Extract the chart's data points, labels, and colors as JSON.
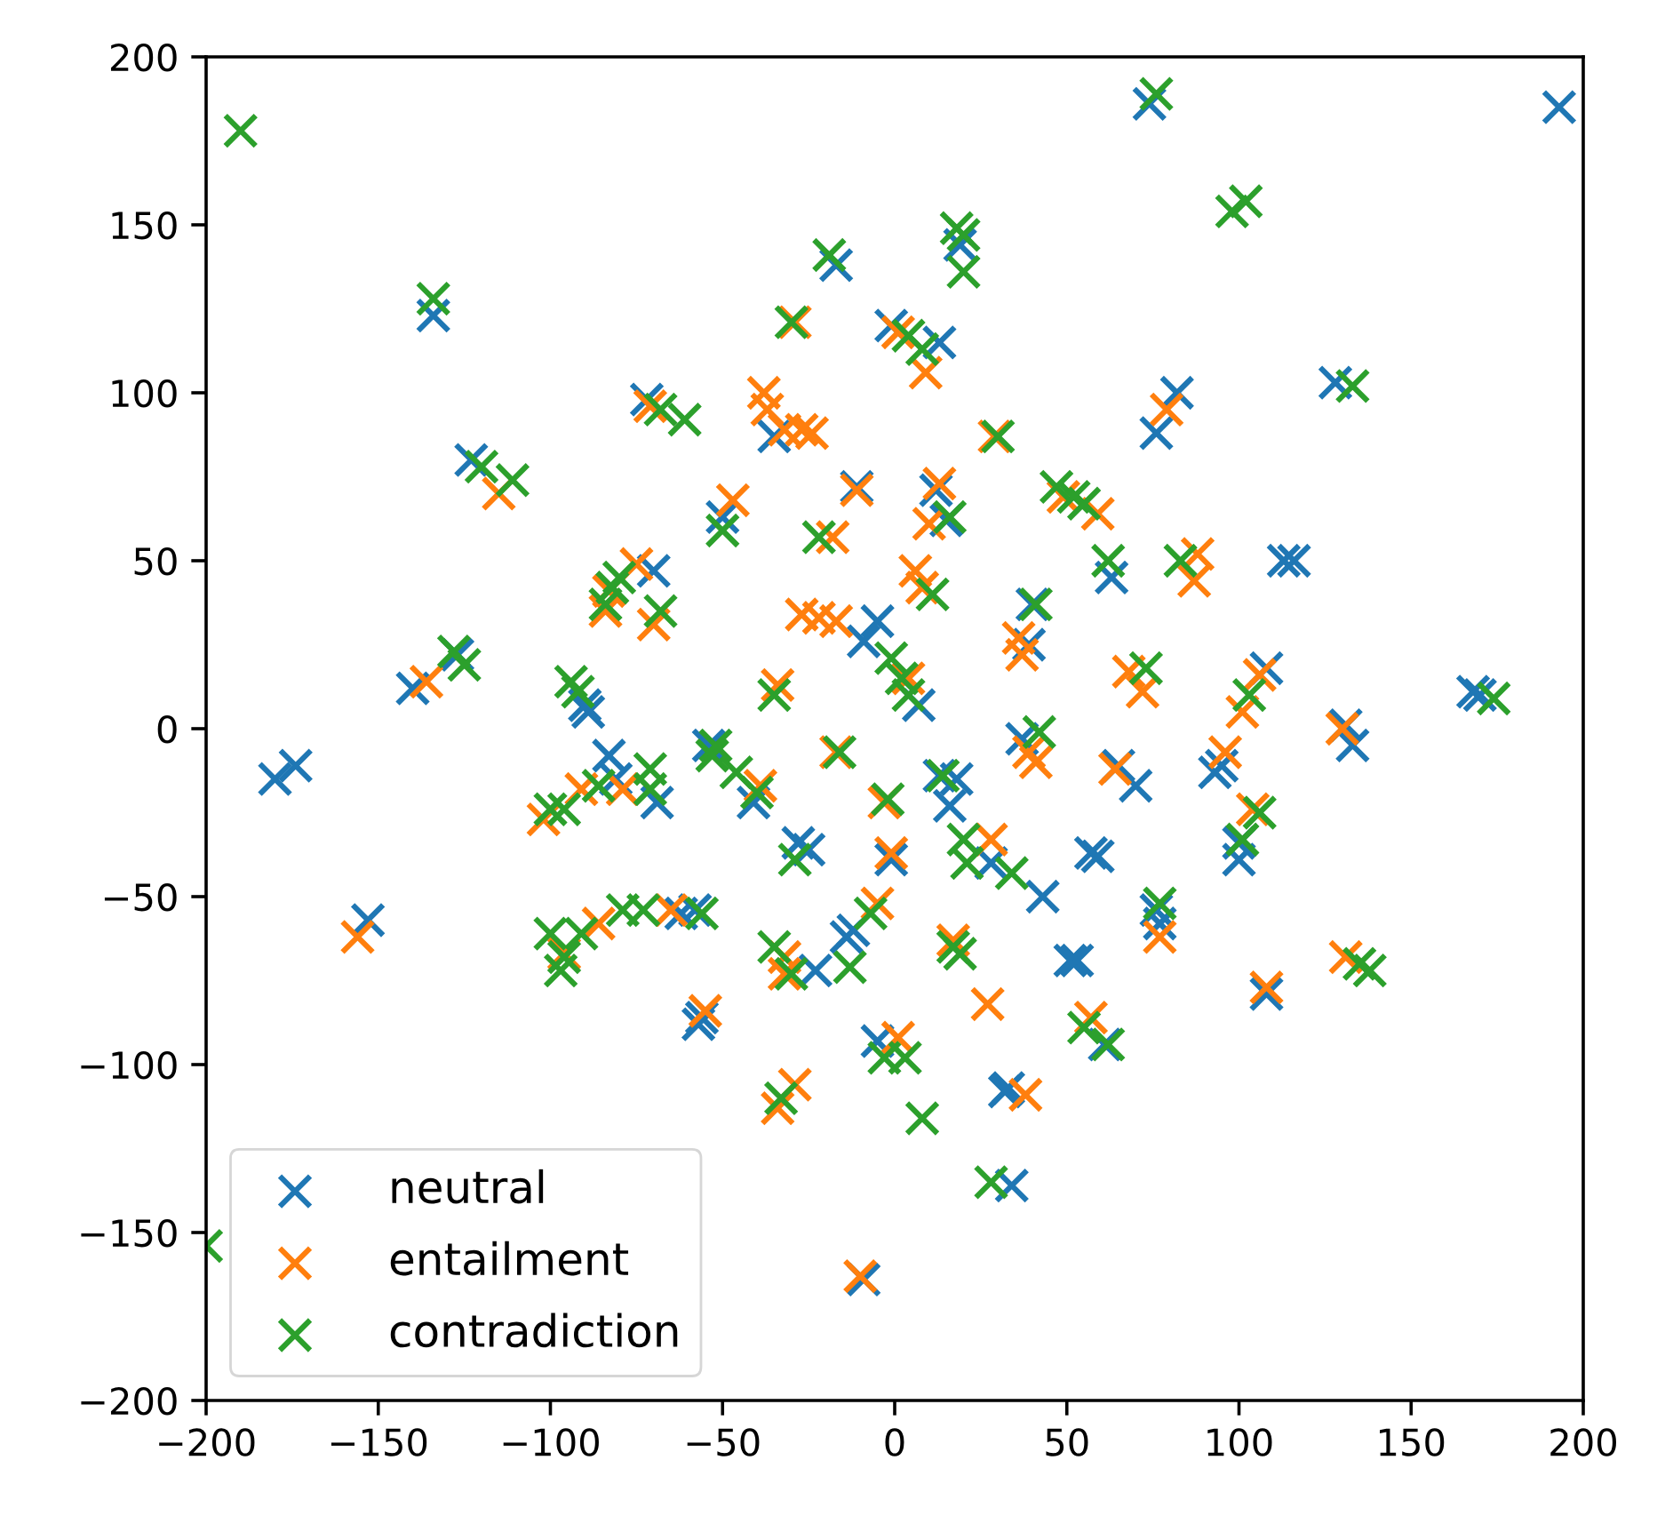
{
  "chart_data": {
    "type": "scatter",
    "marker": "cross",
    "legend": "bottom left",
    "xlim": [
      -200,
      200
    ],
    "ylim": [
      -200,
      200
    ],
    "xticks": [
      {
        "value": -200,
        "label": "−200"
      },
      {
        "value": -150,
        "label": "−150"
      },
      {
        "value": -100,
        "label": "−100"
      },
      {
        "value": -50,
        "label": "−50"
      },
      0,
      50,
      100,
      150,
      200
    ],
    "yticks": [
      {
        "value": -200,
        "label": "−200"
      },
      {
        "value": -150,
        "label": "−150"
      },
      {
        "value": -100,
        "label": "−100"
      },
      {
        "value": -50,
        "label": "−50"
      },
      0,
      50,
      100,
      150,
      200
    ],
    "series": [
      {
        "name": "neutral",
        "color": "#1f77b4",
        "x": [
          193,
          74,
          -134,
          -17,
          19,
          -123,
          -72,
          -1,
          13,
          -35,
          82,
          76,
          128,
          -70,
          -50,
          -11,
          12,
          15,
          63,
          113,
          116,
          -140,
          -127,
          -90,
          -89,
          -9,
          -5,
          7,
          40,
          39,
          108,
          131,
          133,
          168,
          170,
          -180,
          -174,
          -83,
          -81,
          -69,
          -54,
          -41,
          -28,
          -25,
          -1,
          13,
          18,
          16,
          37,
          28,
          43,
          57,
          59,
          65,
          70,
          95,
          93,
          100,
          100,
          76,
          77,
          108,
          -153,
          -62,
          -58,
          -23,
          -14,
          -12,
          -56,
          -57,
          -5,
          32,
          33,
          61,
          51,
          53,
          34,
          -9
        ],
        "values": [
          185,
          186,
          123,
          138,
          144,
          80,
          98,
          120,
          115,
          87,
          100,
          88,
          103,
          47,
          63,
          72,
          71,
          62,
          45,
          50,
          50,
          12,
          22,
          7,
          5,
          26,
          32,
          7,
          37,
          25,
          18,
          1,
          -5,
          11,
          10,
          -15,
          -11,
          -8,
          -15,
          -22,
          -5,
          -22,
          -34,
          -36,
          -39,
          -14,
          -15,
          -23,
          -3,
          -40,
          -50,
          -37,
          -38,
          -11,
          -17,
          -11,
          -13,
          -34,
          -39,
          -54,
          -58,
          -79,
          -57,
          -55,
          -54,
          -72,
          -62,
          -60,
          -86,
          -88,
          -93,
          -108,
          -107,
          -94,
          -69,
          -69,
          -136,
          -164
        ]
      },
      {
        "name": "entailment",
        "color": "#ff7f0e",
        "x": [
          -29,
          1,
          9,
          -38,
          -37,
          -32,
          -27,
          -24,
          -71,
          -115,
          79,
          -11,
          13,
          10,
          29,
          -47,
          -18,
          49,
          59,
          88,
          87,
          -75,
          -83,
          -84,
          -70,
          -136,
          -27,
          -22,
          -17,
          6,
          8,
          4,
          -34,
          36,
          37,
          68,
          72,
          106,
          101,
          130,
          -102,
          -91,
          -79,
          -39,
          -17,
          -3,
          39,
          41,
          64,
          96,
          104,
          -1,
          28,
          -65,
          -86,
          -96,
          -32,
          -32,
          -5,
          17,
          27,
          77,
          108,
          131,
          -156,
          -55,
          1,
          57,
          -29,
          -34,
          38,
          -10
        ],
        "values": [
          121,
          118,
          106,
          100,
          95,
          89,
          89,
          88,
          96,
          70,
          95,
          71,
          73,
          61,
          87,
          68,
          57,
          69,
          64,
          52,
          44,
          49,
          41,
          35,
          31,
          14,
          34,
          33,
          32,
          47,
          42,
          15,
          13,
          27,
          22,
          17,
          11,
          16,
          5,
          0,
          -27,
          -18,
          -18,
          -17,
          -7,
          -22,
          -7,
          -10,
          -12,
          -7,
          -24,
          -37,
          -33,
          -54,
          -58,
          -67,
          -68,
          -73,
          -52,
          -63,
          -82,
          -62,
          -77,
          -68,
          -62,
          -84,
          -92,
          -86,
          -106,
          -113,
          -109,
          -163
        ]
      },
      {
        "name": "contradiction",
        "color": "#2ca02c",
        "x": [
          -190,
          76,
          98,
          102,
          -134,
          -19,
          18,
          20,
          20,
          -30,
          4,
          8,
          -68,
          -61,
          -120,
          -111,
          30,
          -50,
          -22,
          16,
          47,
          52,
          55,
          62,
          83,
          133,
          -80,
          -82,
          -84,
          -68,
          -128,
          -125,
          -94,
          -92,
          11,
          -1,
          2,
          4,
          -35,
          41,
          42,
          73,
          103,
          174,
          -100,
          -96,
          -86,
          -71,
          -71,
          -52,
          -53,
          -46,
          -40,
          -16,
          -2,
          14,
          20,
          21,
          34,
          -29,
          101,
          106,
          77,
          -100,
          -96,
          -97,
          -91,
          -79,
          -73,
          -56,
          -35,
          -30,
          -13,
          -7,
          17,
          19,
          55,
          62,
          135,
          138,
          -33,
          -3,
          3,
          8,
          28,
          -200
        ],
        "values": [
          178,
          189,
          154,
          157,
          128,
          141,
          149,
          147,
          136,
          121,
          117,
          113,
          95,
          92,
          78,
          74,
          87,
          59,
          57,
          63,
          72,
          69,
          67,
          50,
          50,
          102,
          45,
          42,
          37,
          35,
          23,
          19,
          14,
          11,
          40,
          21,
          15,
          10,
          10,
          37,
          -1,
          18,
          10,
          9,
          -24,
          -24,
          -17,
          -12,
          -18,
          -5,
          -8,
          -13,
          -19,
          -7,
          -21,
          -14,
          -33,
          -40,
          -43,
          -39,
          -33,
          -25,
          -52,
          -61,
          -68,
          -72,
          -61,
          -54,
          -54,
          -55,
          -65,
          -73,
          -71,
          -55,
          -65,
          -67,
          -89,
          -94,
          -70,
          -72,
          -110,
          -98,
          -98,
          -116,
          -135,
          -154
        ]
      }
    ]
  }
}
